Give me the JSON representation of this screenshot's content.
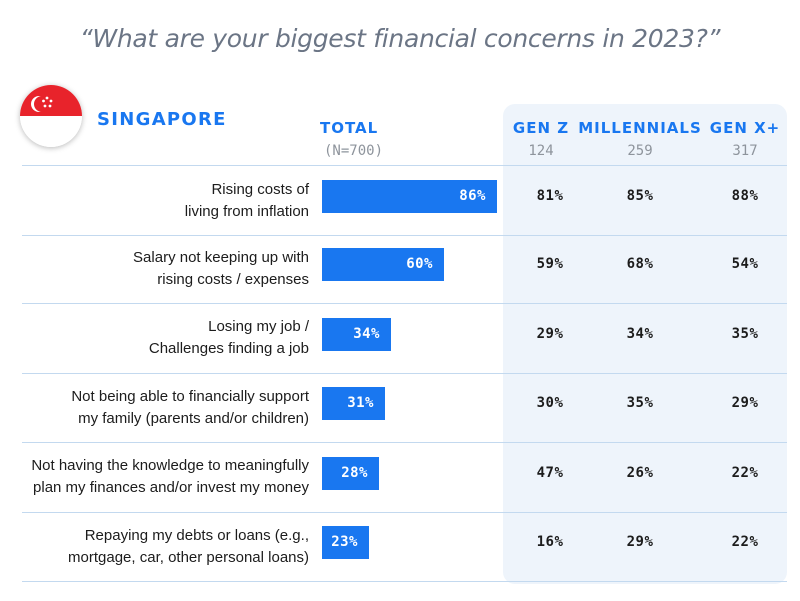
{
  "title": "“What are your biggest financial concerns in 2023?”",
  "country": "SINGAPORE",
  "flag_icon": "singapore-flag-icon",
  "colors": {
    "accent": "#1977f0",
    "panel": "#eef4fb",
    "flag_red": "#e8232b"
  },
  "columns": {
    "total": {
      "label": "TOTAL",
      "sub": "(N=700)"
    },
    "gen_z": {
      "label": "GEN Z",
      "sub": "124"
    },
    "millennials": {
      "label": "MILLENNIALS",
      "sub": "259"
    },
    "gen_x": {
      "label": "GEN X+",
      "sub": "317"
    }
  },
  "chart_data": {
    "type": "bar",
    "orientation": "horizontal",
    "title": "“What are your biggest financial concerns in 2023?”",
    "categories": [
      [
        "Rising costs of",
        "living from inflation"
      ],
      [
        "Salary not keeping up with",
        "rising costs / expenses"
      ],
      [
        "Losing my job /",
        "Challenges finding a job"
      ],
      [
        "Not being able to financially support",
        "my family (parents and/or children)"
      ],
      [
        "Not having the knowledge to meaningfully",
        "plan my finances and/or invest my money"
      ],
      [
        "Repaying my debts or loans (e.g.,",
        "mortgage, car, other personal loans)"
      ]
    ],
    "values": [
      86,
      60,
      34,
      31,
      28,
      23
    ],
    "value_labels": [
      "86%",
      "60%",
      "34%",
      "31%",
      "28%",
      "23%"
    ],
    "xlim": [
      0,
      100
    ],
    "breakdown": {
      "gen_z": [
        "81%",
        "59%",
        "29%",
        "30%",
        "47%",
        "16%"
      ],
      "millennials": [
        "85%",
        "68%",
        "34%",
        "35%",
        "26%",
        "29%"
      ],
      "gen_x": [
        "88%",
        "54%",
        "35%",
        "29%",
        "22%",
        "22%"
      ]
    }
  }
}
